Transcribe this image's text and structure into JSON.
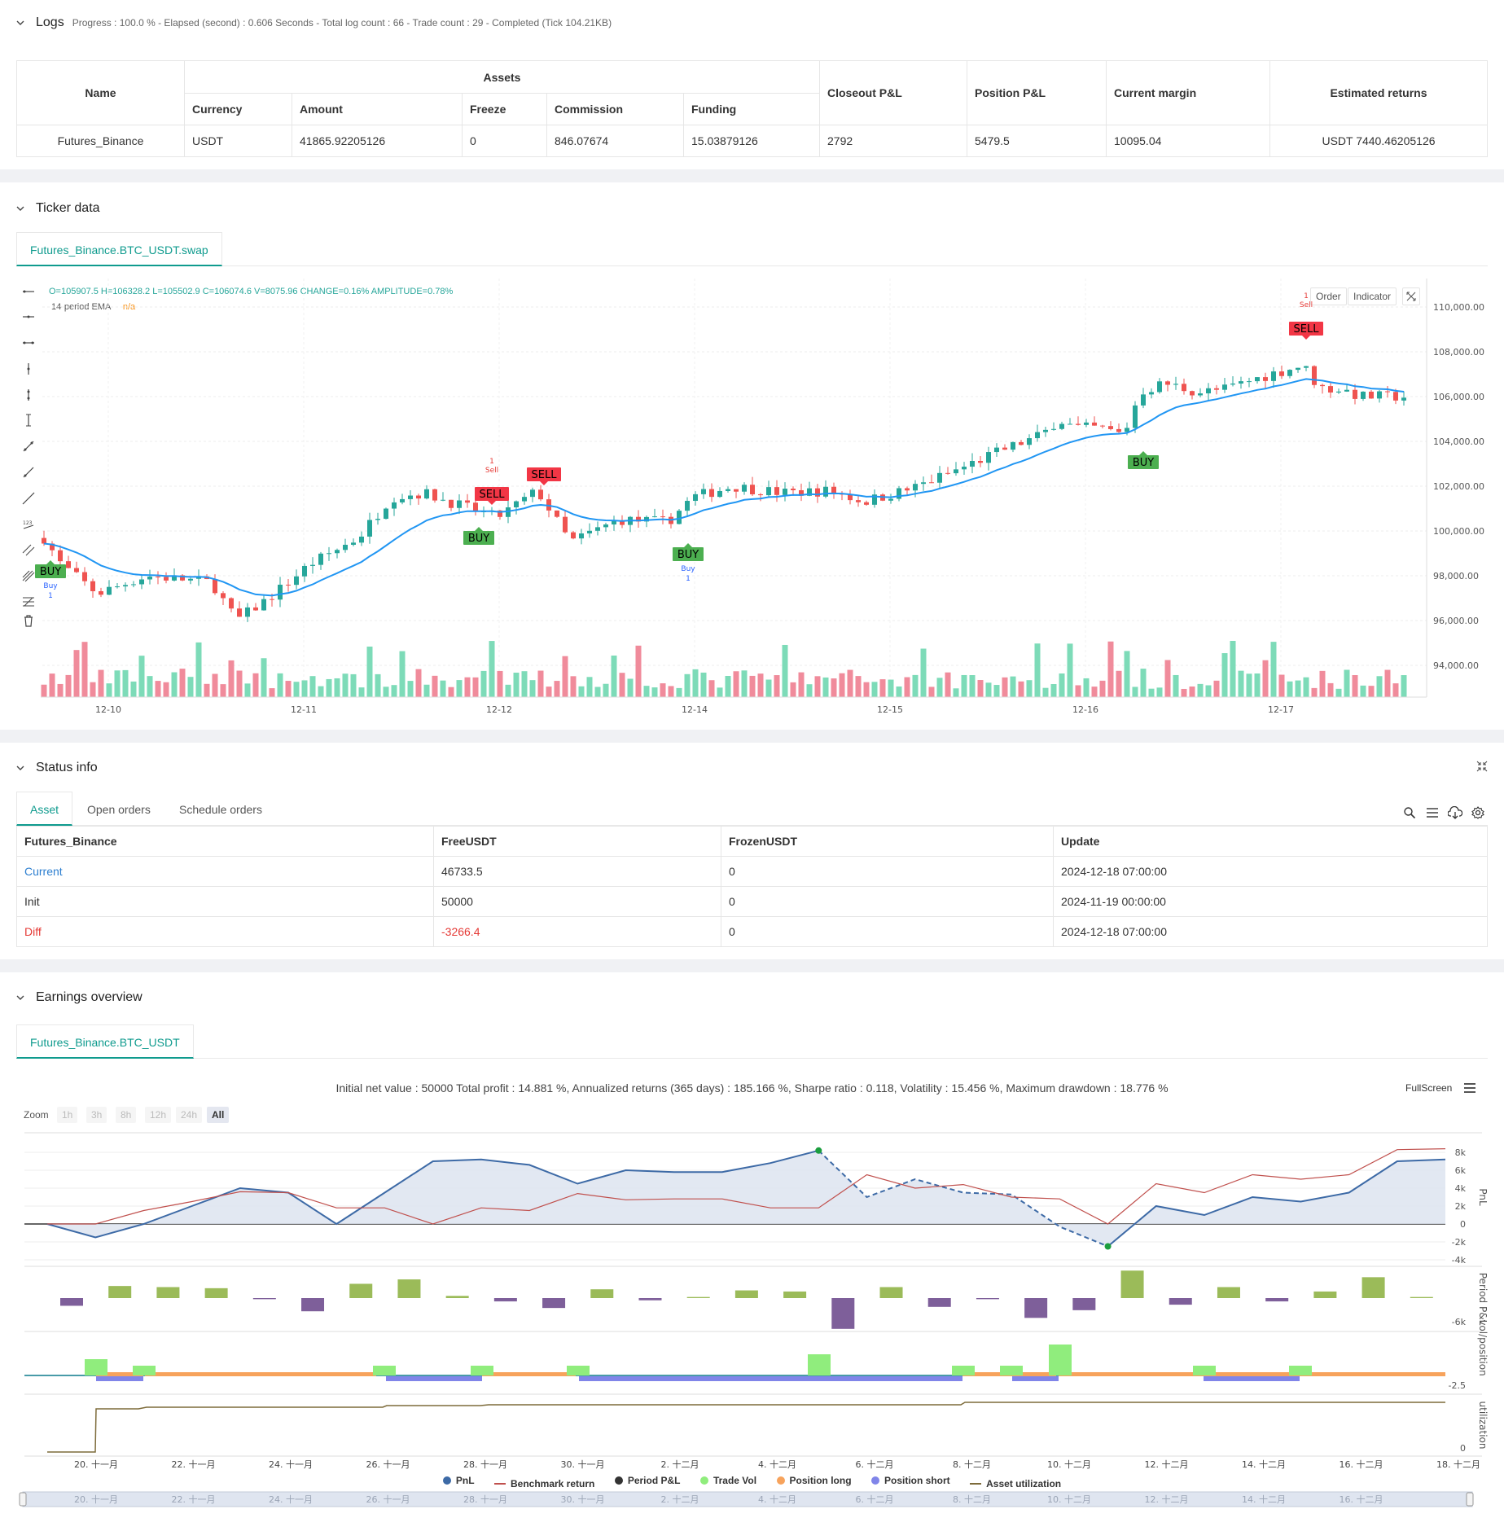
{
  "logs": {
    "title": "Logs",
    "info": "Progress : 100.0 % - Elapsed (second) : 0.606  Seconds - Total log count : 66 - Trade count : 29 - Completed (Tick 104.21KB)",
    "table": {
      "name_header": "Name",
      "assets_header": "Assets",
      "sub_headers": [
        "Currency",
        "Amount",
        "Freeze",
        "Commission",
        "Funding"
      ],
      "right_headers": [
        "Closeout P&L",
        "Position P&L",
        "Current margin",
        "Estimated returns"
      ],
      "row": {
        "name": "Futures_Binance",
        "currency": "USDT",
        "amount": "41865.92205126",
        "freeze": "0",
        "commission": "846.07674",
        "funding": "15.03879126",
        "closeout": "2792",
        "position": "5479.5",
        "margin": "10095.04",
        "estimated": "USDT 7440.46205126"
      }
    }
  },
  "ticker": {
    "title": "Ticker data",
    "tab": "Futures_Binance.BTC_USDT.swap",
    "ohlc": "O=105907.5 H=106328.2 L=105502.9 C=106074.6 V=8075.96 CHANGE=0.16% AMPLITUDE=0.78%",
    "ema_label": "14-period EMA",
    "ema_value": "n/a",
    "order_btn": "Order",
    "indicator_btn": "Indicator",
    "y_ticks": [
      "110,000.00",
      "108,000.00",
      "106,000.00",
      "104,000.00",
      "102,000.00",
      "100,000.00",
      "98,000.00",
      "96,000.00",
      "94,000.00"
    ],
    "x_ticks": [
      "12-10",
      "12-11",
      "12-12",
      "12-14",
      "12-15",
      "12-16",
      "12-17"
    ],
    "signals": [
      {
        "type": "BUY",
        "sub": "Buy",
        "num": "1"
      },
      {
        "type": "BUY"
      },
      {
        "type": "SELL",
        "sub": "Sell",
        "num": "1"
      },
      {
        "type": "SELL"
      },
      {
        "type": "BUY",
        "sub": "Buy",
        "num": "1"
      },
      {
        "type": "BUY"
      },
      {
        "type": "SELL",
        "sub": "Sell",
        "num": "1"
      }
    ],
    "colors": {
      "up": "#26a69a",
      "down": "#ef5350",
      "ema": "#2196f3",
      "buy": "#4caf50",
      "sell": "#f23645"
    }
  },
  "status": {
    "title": "Status info",
    "tabs": [
      "Asset",
      "Open orders",
      "Schedule orders"
    ],
    "headers": [
      "Futures_Binance",
      "FreeUSDT",
      "FrozenUSDT",
      "Update"
    ],
    "rows": [
      {
        "label": "Current",
        "free": "46733.5",
        "frozen": "0",
        "update": "2024-12-18 07:00:00"
      },
      {
        "label": "Init",
        "free": "50000",
        "frozen": "0",
        "update": "2024-11-19 00:00:00"
      },
      {
        "label": "Diff",
        "free": "-3266.4",
        "frozen": "0",
        "update": "2024-12-18 07:00:00"
      }
    ]
  },
  "earnings": {
    "title": "Earnings overview",
    "tab": "Futures_Binance.BTC_USDT",
    "summary": "Initial net value : 50000 Total profit : 14.881 %, Annualized returns (365 days) : 185.166 %, Sharpe ratio : 0.118, Volatility : 15.456 %, Maximum drawdown : 18.776 %",
    "fullscreen": "FullScreen",
    "zoom_label": "Zoom",
    "zoom_options": [
      "1h",
      "3h",
      "8h",
      "12h",
      "24h",
      "All"
    ],
    "pnl_ticks": [
      "8k",
      "6k",
      "4k",
      "2k",
      "0",
      "-2k",
      "-4k"
    ],
    "period_tick": "-6k",
    "vol_tick": "-2.5",
    "util_tick": "0",
    "axis_titles": [
      "PnL",
      "Period P&L",
      "vol/position",
      "utilization"
    ],
    "x_ticks": [
      "20. 十一月",
      "22. 十一月",
      "24. 十一月",
      "26. 十一月",
      "28. 十一月",
      "30. 十一月",
      "2. 十二月",
      "4. 十二月",
      "6. 十二月",
      "8. 十二月",
      "10. 十二月",
      "12. 十二月",
      "14. 十二月",
      "16. 十二月",
      "18. 十二月"
    ],
    "nav_ticks": [
      "20. 十一月",
      "22. 十一月",
      "24. 十一月",
      "26. 十一月",
      "28. 十一月",
      "30. 十一月",
      "2. 十二月",
      "4. 十二月",
      "6. 十二月",
      "8. 十二月",
      "10. 十二月",
      "12. 十二月",
      "14. 十二月",
      "16. 十二月"
    ],
    "legend": [
      {
        "name": "PnL",
        "color": "#3d6aa6",
        "kind": "dot"
      },
      {
        "name": "Benchmark return",
        "color": "#c0504d",
        "kind": "line"
      },
      {
        "name": "Period P&L",
        "color": "#333333",
        "kind": "dot"
      },
      {
        "name": "Trade Vol",
        "color": "#90ed7d",
        "kind": "dot"
      },
      {
        "name": "Position long",
        "color": "#f7a35c",
        "kind": "dot"
      },
      {
        "name": "Position short",
        "color": "#8085e9",
        "kind": "dot"
      },
      {
        "name": "Asset utilization",
        "color": "#7d6b3a",
        "kind": "line"
      }
    ]
  },
  "chart_data": [
    {
      "type": "line",
      "title": "",
      "ylabel": "PnL",
      "series": [
        {
          "name": "PnL",
          "values": [
            0,
            -1500,
            0,
            2000,
            4000,
            3500,
            0,
            3500,
            7000,
            7200,
            6600,
            4500,
            6000,
            5800,
            5800,
            6800,
            8200,
            3000,
            5000,
            3500,
            3300,
            -300,
            -2500,
            2000,
            1000,
            3000,
            2500,
            3500,
            7000,
            7200
          ]
        },
        {
          "name": "Benchmark return",
          "values": [
            0,
            0,
            1500,
            2500,
            3600,
            3500,
            1800,
            1800,
            0,
            1800,
            1500,
            3400,
            2700,
            2800,
            2800,
            1800,
            1800,
            5500,
            4000,
            4400,
            3000,
            2800,
            0,
            4500,
            3500,
            5500,
            5000,
            5500,
            8300,
            8400
          ]
        }
      ],
      "ylim": [
        -4000,
        8000
      ]
    },
    {
      "type": "bar",
      "title": "",
      "ylabel": "Period P&L",
      "values": [
        -700,
        1100,
        1000,
        900,
        -100,
        -1200,
        1300,
        1700,
        200,
        -300,
        -900,
        800,
        -200,
        100,
        700,
        600,
        -2800,
        1000,
        -800,
        -100,
        -1800,
        -1100,
        2500,
        -600,
        1000,
        -300,
        600,
        1900,
        100
      ]
    }
  ]
}
